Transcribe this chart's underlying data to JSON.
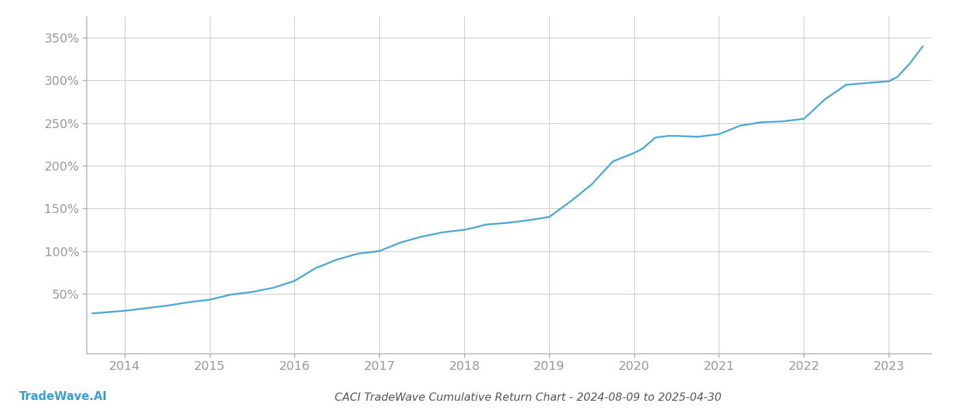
{
  "title": "CACI TradeWave Cumulative Return Chart - 2024-08-09 to 2025-04-30",
  "watermark": "TradeWave.AI",
  "line_color": "#4aa8d8",
  "background_color": "#ffffff",
  "grid_color": "#cccccc",
  "x_tick_color": "#999999",
  "y_tick_color": "#999999",
  "title_color": "#555555",
  "watermark_color": "#3a9fd1",
  "x_ticks": [
    2014,
    2015,
    2016,
    2017,
    2018,
    2019,
    2020,
    2021,
    2022,
    2023
  ],
  "y_ticks": [
    50,
    100,
    150,
    200,
    250,
    300,
    350
  ],
  "xlim": [
    2013.55,
    2023.5
  ],
  "ylim": [
    -20,
    375
  ],
  "line_width": 1.8,
  "tick_fontsize": 13,
  "title_fontsize": 11.5,
  "watermark_fontsize": 12,
  "data_x": [
    2013.62,
    2014.0,
    2014.25,
    2014.5,
    2014.75,
    2015.0,
    2015.25,
    2015.5,
    2015.75,
    2016.0,
    2016.25,
    2016.5,
    2016.75,
    2017.0,
    2017.25,
    2017.5,
    2017.75,
    2018.0,
    2018.1,
    2018.25,
    2018.5,
    2018.75,
    2019.0,
    2019.25,
    2019.5,
    2019.75,
    2020.0,
    2020.1,
    2020.25,
    2020.4,
    2020.5,
    2020.75,
    2021.0,
    2021.25,
    2021.5,
    2021.75,
    2022.0,
    2022.25,
    2022.5,
    2022.75,
    2023.0,
    2023.1,
    2023.25,
    2023.4
  ],
  "data_y": [
    27,
    30,
    33,
    36,
    40,
    43,
    49,
    52,
    57,
    65,
    80,
    90,
    97,
    100,
    110,
    117,
    122,
    125,
    127,
    131,
    133,
    136,
    140,
    158,
    178,
    205,
    215,
    220,
    233,
    235,
    235,
    234,
    237,
    247,
    251,
    252,
    255,
    278,
    295,
    297,
    299,
    304,
    320,
    340
  ]
}
